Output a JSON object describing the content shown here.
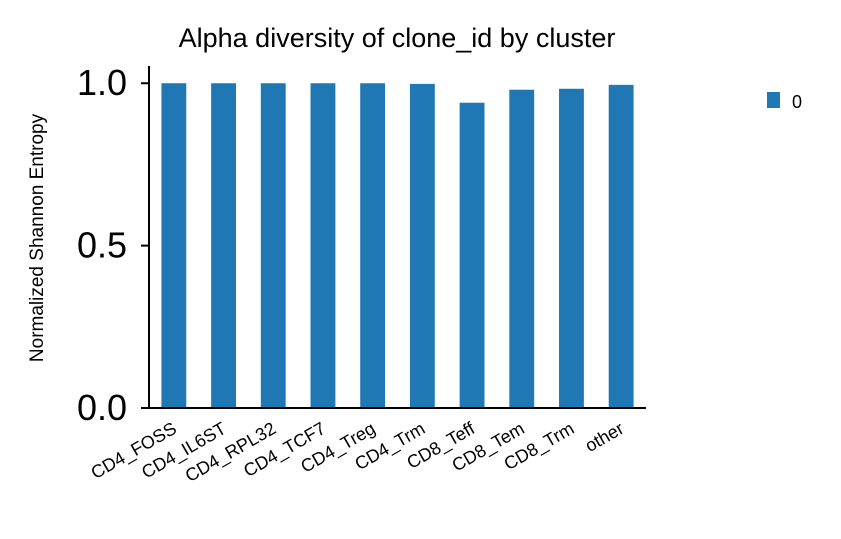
{
  "chart_data": {
    "type": "bar",
    "title": "Alpha diversity of clone_id by cluster",
    "xlabel": "",
    "ylabel": "Normalized Shannon Entropy",
    "categories": [
      "CD4_FOSS",
      "CD4_IL6ST",
      "CD4_RPL32",
      "CD4_TCF7",
      "CD4_Treg",
      "CD4_Trm",
      "CD8_Teff",
      "CD8_Tem",
      "CD8_Trm",
      "other"
    ],
    "series": [
      {
        "name": "0",
        "color": "#1f77b4",
        "values": [
          1.0,
          1.0,
          1.0,
          1.0,
          1.0,
          0.998,
          0.94,
          0.98,
          0.983,
          0.995
        ]
      }
    ],
    "ylim": [
      0,
      1.05
    ],
    "yticks": [
      0.0,
      0.5,
      1.0
    ],
    "ytick_labels": [
      "0.0",
      "0.5",
      "1.0"
    ],
    "grid": false,
    "legend_position": "right"
  }
}
